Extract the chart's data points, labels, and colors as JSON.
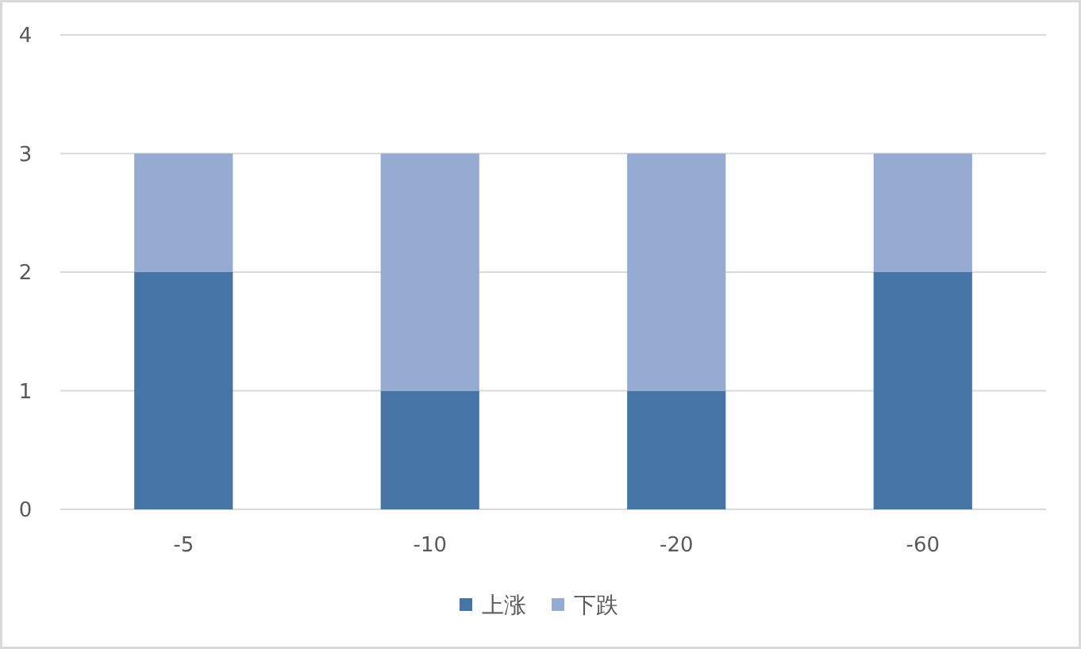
{
  "chart_data": {
    "type": "bar",
    "stacked": true,
    "categories": [
      "-5",
      "-10",
      "-20",
      "-60"
    ],
    "series": [
      {
        "name": "上涨",
        "color": "#4674a7",
        "values": [
          2,
          1,
          1,
          2
        ]
      },
      {
        "name": "下跌",
        "color": "#96abd2",
        "values": [
          1,
          2,
          2,
          1
        ]
      }
    ],
    "ylim": [
      0,
      4
    ],
    "yticks": [
      0,
      1,
      2,
      3,
      4
    ],
    "grid": "y",
    "legend": "bottom"
  }
}
